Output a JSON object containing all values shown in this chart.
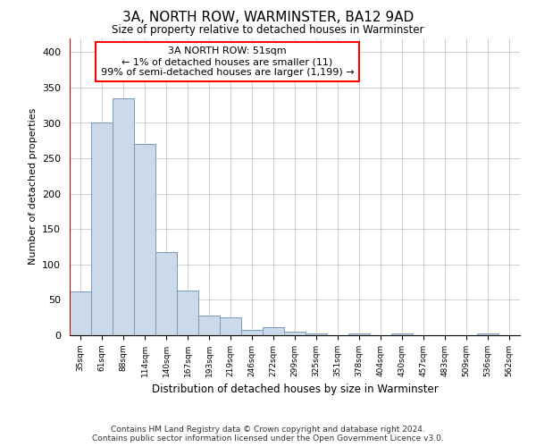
{
  "title": "3A, NORTH ROW, WARMINSTER, BA12 9AD",
  "subtitle": "Size of property relative to detached houses in Warminster",
  "xlabel": "Distribution of detached houses by size in Warminster",
  "ylabel": "Number of detached properties",
  "bar_color": "#ccd9e8",
  "bar_edge_color": "#7799bb",
  "annotation_lines": [
    "3A NORTH ROW: 51sqm",
    "← 1% of detached houses are smaller (11)",
    "99% of semi-detached houses are larger (1,199) →"
  ],
  "marker_line_color": "#cc0000",
  "categories": [
    "35sqm",
    "61sqm",
    "88sqm",
    "114sqm",
    "140sqm",
    "167sqm",
    "193sqm",
    "219sqm",
    "246sqm",
    "272sqm",
    "299sqm",
    "325sqm",
    "351sqm",
    "378sqm",
    "404sqm",
    "430sqm",
    "457sqm",
    "483sqm",
    "509sqm",
    "536sqm",
    "562sqm"
  ],
  "values": [
    62,
    300,
    335,
    270,
    118,
    63,
    28,
    25,
    7,
    12,
    5,
    3,
    0,
    2,
    0,
    3,
    0,
    0,
    0,
    2,
    0
  ],
  "ylim": [
    0,
    420
  ],
  "yticks": [
    0,
    50,
    100,
    150,
    200,
    250,
    300,
    350,
    400
  ],
  "footer_lines": [
    "Contains HM Land Registry data © Crown copyright and database right 2024.",
    "Contains public sector information licensed under the Open Government Licence v3.0."
  ],
  "background_color": "#ffffff",
  "grid_color": "#c8c8d0"
}
